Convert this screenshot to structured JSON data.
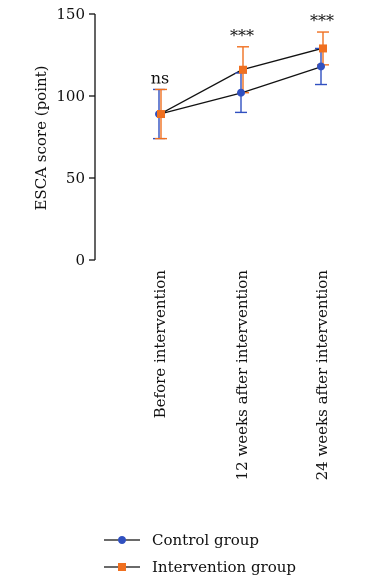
{
  "chart_data": {
    "type": "line",
    "title": "",
    "ylabel": "ESCA score (point)",
    "xlabel": "",
    "ylim": [
      0,
      150
    ],
    "yticks": [
      0,
      50,
      100,
      150
    ],
    "categories": [
      "Before intervention",
      "12 weeks after intervention",
      "24 weeks after intervention"
    ],
    "series": [
      {
        "name": "Control group",
        "values": [
          89,
          102,
          118
        ],
        "error": [
          15,
          12,
          11
        ],
        "color": "#3050c0",
        "marker": "circle"
      },
      {
        "name": "Intervention group",
        "values": [
          89,
          116,
          129
        ],
        "error": [
          15,
          14,
          10
        ],
        "color": "#f07020",
        "marker": "square"
      }
    ],
    "annotations": [
      "ns",
      "***",
      "***"
    ],
    "legend": "bottom",
    "grid": false
  }
}
